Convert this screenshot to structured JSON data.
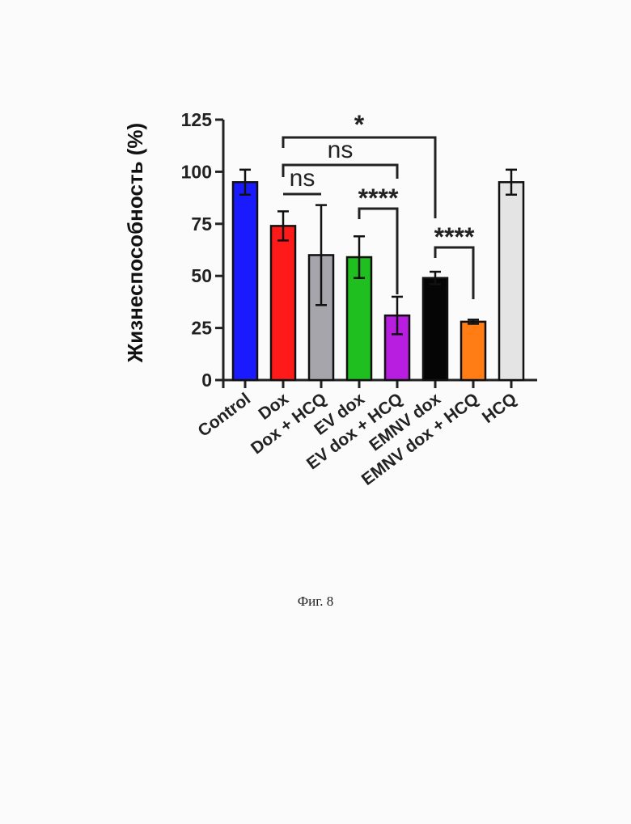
{
  "caption": "Фиг. 8",
  "chart_data": {
    "type": "bar",
    "ylabel": "Жизнеспособность (%)",
    "xlabel": "",
    "ylim": [
      0,
      125
    ],
    "yticks": [
      0,
      25,
      50,
      75,
      100,
      125
    ],
    "categories": [
      "Control",
      "Dox",
      "Dox + HCQ",
      "EV dox",
      "EV dox + HCQ",
      "EMNV dox",
      "EMNV dox + HCQ",
      "HCQ"
    ],
    "values": [
      95,
      74,
      60,
      59,
      31,
      49,
      28,
      95
    ],
    "errors": [
      6,
      7,
      24,
      10,
      9,
      3,
      1,
      6
    ],
    "colors": [
      "#1a1aff",
      "#ff1a1a",
      "#a7a5ac",
      "#1fbf1f",
      "#b81ee0",
      "#050505",
      "#ff7d14",
      "#e4e4e4"
    ],
    "significance": [
      {
        "from": 1,
        "to": 5,
        "label": "*"
      },
      {
        "from": 1,
        "to": 4,
        "label": "ns"
      },
      {
        "from": 1,
        "to": 2,
        "label": "ns"
      },
      {
        "from": 3,
        "to": 4,
        "label": "****"
      },
      {
        "from": 5,
        "to": 6,
        "label": "****"
      }
    ]
  }
}
